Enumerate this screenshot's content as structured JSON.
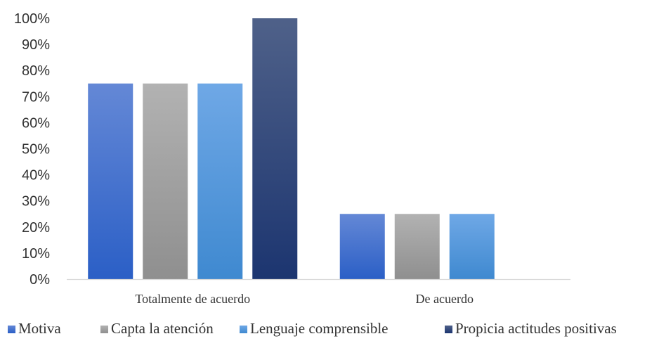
{
  "chart_data": {
    "type": "bar",
    "categories": [
      "Totalmente de acuerdo",
      "De acuerdo"
    ],
    "series": [
      {
        "name": "Motiva",
        "values": [
          75,
          25
        ],
        "color_top": "#6488d6",
        "color_bottom": "#2b5fc6"
      },
      {
        "name": "Capta la atención",
        "values": [
          75,
          25
        ],
        "color_top": "#b2b2b2",
        "color_bottom": "#8f8f8f"
      },
      {
        "name": "Lenguaje comprensible",
        "values": [
          75,
          25
        ],
        "color_top": "#6fa8e6",
        "color_bottom": "#3f89d0"
      },
      {
        "name": "Propicia actitudes positivas",
        "values": [
          100,
          0
        ],
        "color_top": "#4f6189",
        "color_bottom": "#1c3570"
      }
    ],
    "y_ticks": [
      "0%",
      "10%",
      "20%",
      "30%",
      "40%",
      "50%",
      "60%",
      "70%",
      "80%",
      "90%",
      "100%"
    ],
    "ylim": [
      0,
      100
    ],
    "y_unit": "%",
    "grid": false,
    "legend_position": "bottom"
  }
}
